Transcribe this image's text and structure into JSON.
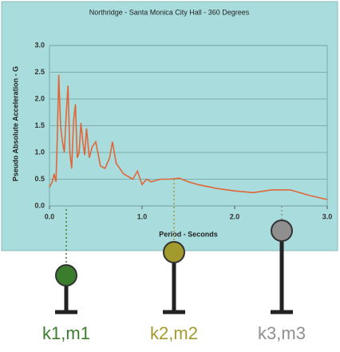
{
  "chart_data": {
    "type": "line",
    "title": "Northridge - Santa Monica City Hall - 360 Degrees",
    "x_label": "Period - Seconds",
    "y_label": "Pseudo Absolute Acceleration - G",
    "x": [
      0.0,
      0.03,
      0.05,
      0.07,
      0.08,
      0.1,
      0.12,
      0.14,
      0.16,
      0.18,
      0.2,
      0.22,
      0.24,
      0.26,
      0.28,
      0.3,
      0.32,
      0.34,
      0.36,
      0.38,
      0.4,
      0.43,
      0.46,
      0.5,
      0.55,
      0.6,
      0.65,
      0.68,
      0.72,
      0.8,
      0.9,
      0.95,
      1.0,
      1.05,
      1.1,
      1.2,
      1.3,
      1.4,
      1.5,
      1.6,
      1.8,
      2.0,
      2.2,
      2.4,
      2.6,
      2.8,
      3.0
    ],
    "values": [
      0.35,
      0.45,
      0.6,
      0.45,
      1.0,
      2.45,
      1.5,
      1.2,
      1.0,
      1.7,
      2.25,
      1.0,
      0.7,
      1.6,
      1.9,
      0.9,
      1.0,
      1.55,
      1.2,
      0.95,
      1.45,
      0.9,
      1.1,
      1.2,
      0.75,
      0.7,
      0.9,
      1.2,
      0.8,
      0.6,
      0.5,
      0.65,
      0.4,
      0.5,
      0.45,
      0.5,
      0.5,
      0.52,
      0.45,
      0.4,
      0.33,
      0.28,
      0.25,
      0.3,
      0.3,
      0.2,
      0.12
    ],
    "color": "#e0673a",
    "xlim": [
      0,
      3
    ],
    "ylim": [
      0,
      3
    ],
    "xticks": [
      {
        "value": 0,
        "label": "0.0"
      },
      {
        "value": 1,
        "label": "1.0"
      },
      {
        "value": 2,
        "label": "2.0"
      },
      {
        "value": 3,
        "label": "3.0"
      }
    ],
    "yticks": [
      {
        "value": 0,
        "label": "0.0"
      },
      {
        "value": 0.5,
        "label": "0.5"
      },
      {
        "value": 1,
        "label": "1.0"
      },
      {
        "value": 1.5,
        "label": "1.5"
      },
      {
        "value": 2,
        "label": "2.0"
      },
      {
        "value": 2.5,
        "label": "2.5"
      },
      {
        "value": 3,
        "label": "3.0"
      }
    ],
    "grid": true
  },
  "oscillators": [
    {
      "label": "k1,m1",
      "color": "#3a7d2c"
    },
    {
      "label": "k2,m2",
      "color": "#a39a2e"
    },
    {
      "label": "k3,m3",
      "color": "#8f8f8f"
    }
  ]
}
